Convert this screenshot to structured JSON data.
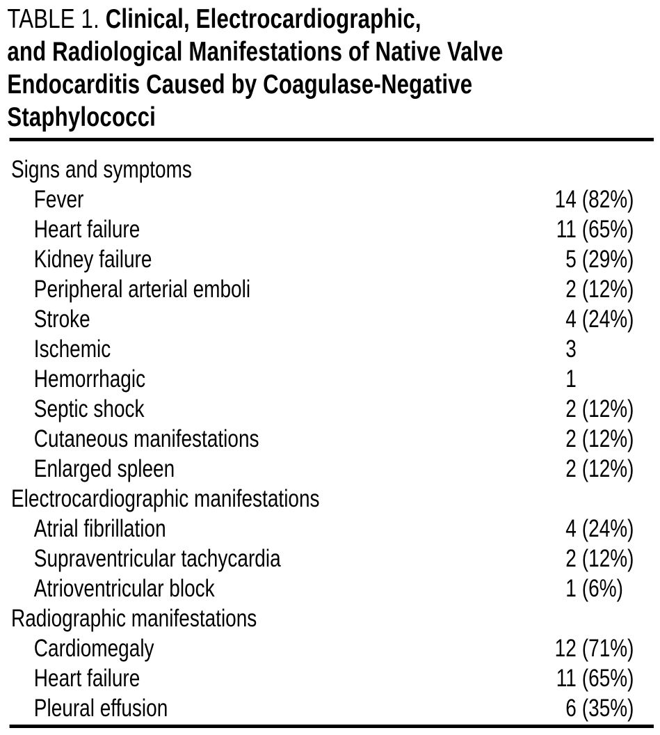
{
  "caption": {
    "label": "TABLE 1.",
    "title_bold_lines": [
      "Clinical, Electrocardiographic,",
      "and Radiological Manifestations of Native Valve",
      "Endocarditis Caused by Coagulase-Negative",
      "Staphylococci"
    ]
  },
  "table": {
    "sections": [
      {
        "header": "Signs and symptoms",
        "rows": [
          {
            "label": "Fever",
            "count": "14",
            "percent": "(82%)"
          },
          {
            "label": "Heart failure",
            "count": "11",
            "percent": "(65%)"
          },
          {
            "label": "Kidney failure",
            "count": "5",
            "percent": "(29%)"
          },
          {
            "label": "Peripheral arterial emboli",
            "count": "2",
            "percent": "(12%)"
          },
          {
            "label": "Stroke",
            "count": "4",
            "percent": "(24%)"
          },
          {
            "label": "Ischemic",
            "count": "3",
            "percent": ""
          },
          {
            "label": "Hemorrhagic",
            "count": "1",
            "percent": ""
          },
          {
            "label": "Septic shock",
            "count": "2",
            "percent": "(12%)"
          },
          {
            "label": "Cutaneous manifestations",
            "count": "2",
            "percent": "(12%)"
          },
          {
            "label": "Enlarged spleen",
            "count": "2",
            "percent": "(12%)"
          }
        ]
      },
      {
        "header": "Electrocardiographic manifestations",
        "rows": [
          {
            "label": "Atrial fibrillation",
            "count": "4",
            "percent": "(24%)"
          },
          {
            "label": "Supraventricular tachycardia",
            "count": "2",
            "percent": "(12%)"
          },
          {
            "label": "Atrioventricular block",
            "count": "1",
            "percent": "(6%)"
          }
        ]
      },
      {
        "header": "Radiographic manifestations",
        "rows": [
          {
            "label": "Cardiomegaly",
            "count": "12",
            "percent": "(71%)"
          },
          {
            "label": "Heart failure",
            "count": "11",
            "percent": "(65%)"
          },
          {
            "label": "Pleural effusion",
            "count": "6",
            "percent": "(35%)"
          }
        ]
      }
    ]
  },
  "colors": {
    "text": "#000000",
    "rule": "#000000",
    "background": "#ffffff"
  }
}
